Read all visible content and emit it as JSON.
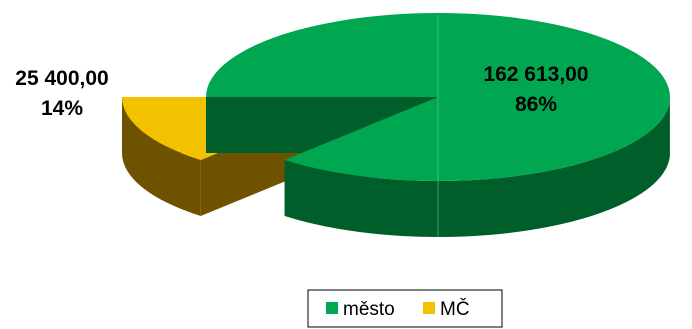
{
  "chart_data": {
    "type": "pie",
    "style": "3d-exploded",
    "legend_position": "bottom",
    "slices": [
      {
        "name": "město",
        "value": 162613.0,
        "value_label": "162 613,00",
        "percent_label": "86%",
        "color": "#00a650",
        "color_side": "#005e2a"
      },
      {
        "name": "MČ",
        "value": 25400.0,
        "value_label": "25 400,00",
        "percent_label": "14%",
        "color": "#f2c200",
        "color_side": "#6e5200"
      }
    ]
  }
}
